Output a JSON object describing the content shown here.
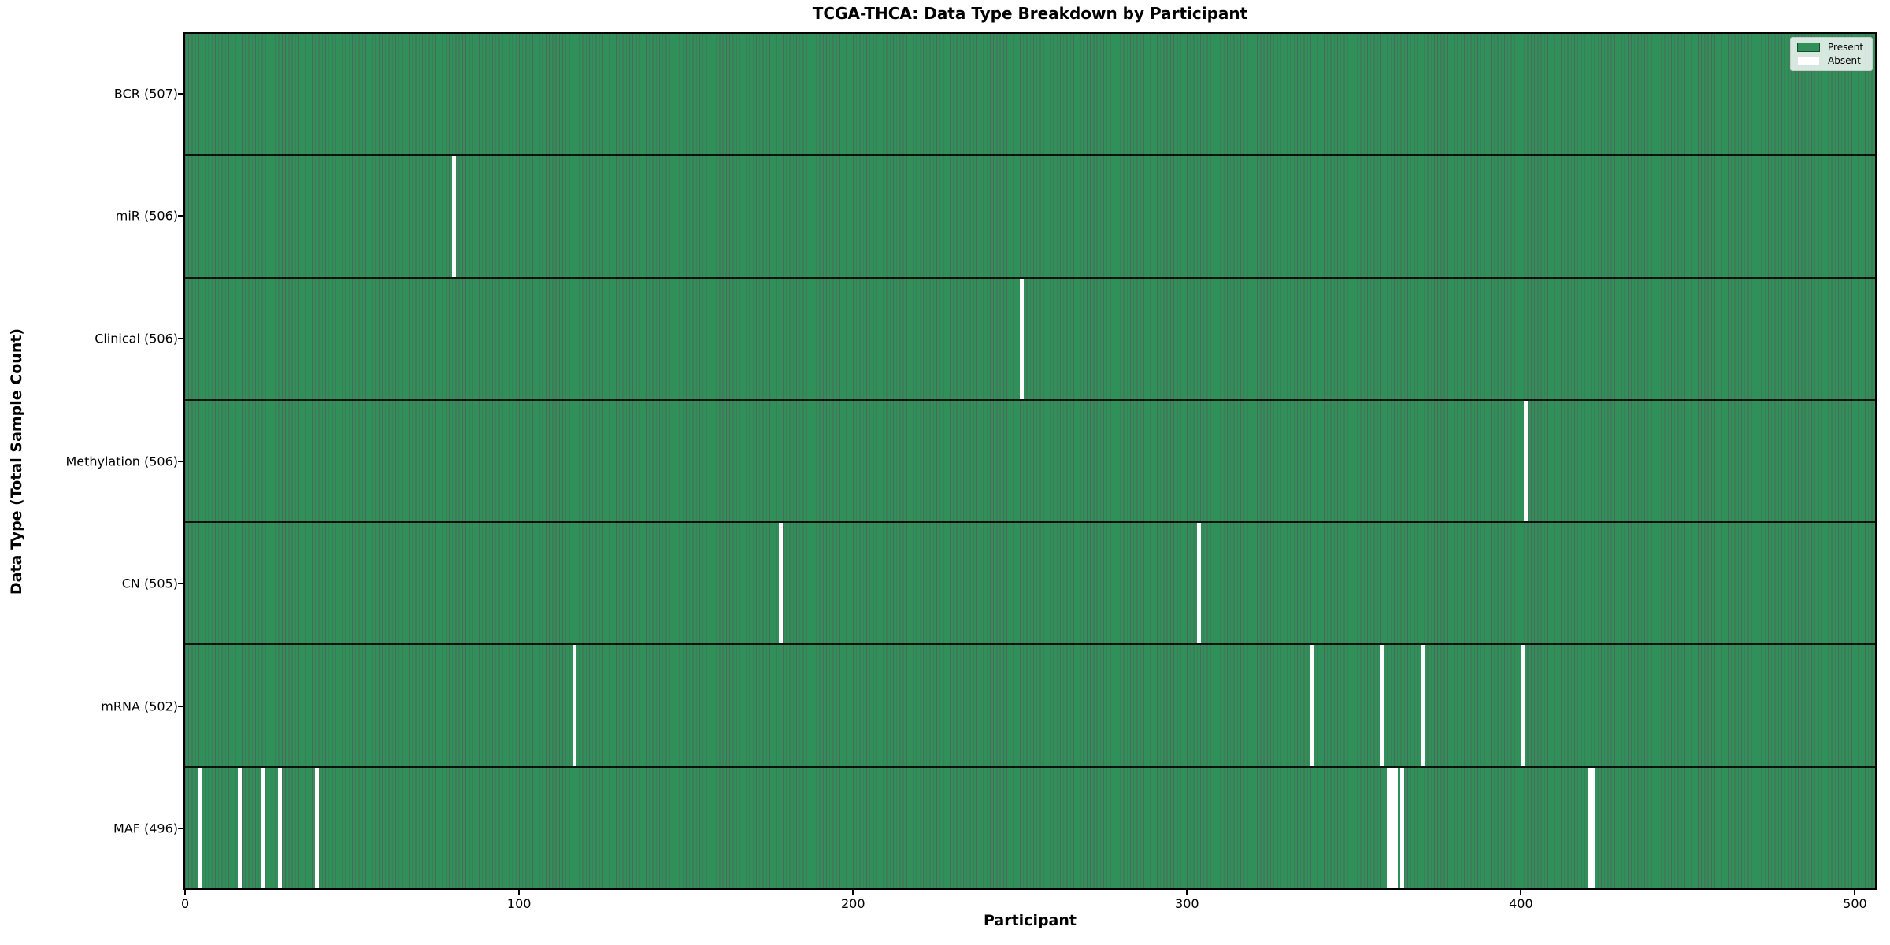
{
  "title": "TCGA-THCA: Data Type Breakdown by Participant",
  "colors": {
    "present": "#2f9059",
    "absent": "#ffffff",
    "bar_edge": "rgba(12,45,28,0.72)",
    "row_separator": "rgba(0,0,0,0.85)",
    "frame": "#000000",
    "legend_border": "#cccccc"
  },
  "chart_data": {
    "type": "heatmap",
    "title": "TCGA-THCA: Data Type Breakdown by Participant",
    "xlabel": "Participant",
    "ylabel": "Data Type (Total Sample Count)",
    "n_participants": 507,
    "xlim": [
      -0.5,
      506.5
    ],
    "x_ticks": [
      0,
      100,
      200,
      300,
      400,
      500
    ],
    "grid": false,
    "legend_position": "upper right",
    "legend": [
      {
        "label": "Present",
        "color": "#2f9059"
      },
      {
        "label": "Absent",
        "color": "#ffffff"
      }
    ],
    "rows": [
      {
        "label": "BCR (507)",
        "total": 507,
        "absent_indices": []
      },
      {
        "label": "miR (506)",
        "total": 506,
        "absent_indices": [
          80
        ]
      },
      {
        "label": "Clinical (506)",
        "total": 506,
        "absent_indices": [
          250
        ]
      },
      {
        "label": "Methylation (506)",
        "total": 506,
        "absent_indices": [
          401
        ]
      },
      {
        "label": "CN (505)",
        "total": 505,
        "absent_indices": [
          178,
          303
        ]
      },
      {
        "label": "mRNA (502)",
        "total": 502,
        "absent_indices": [
          116,
          337,
          358,
          370,
          400
        ]
      },
      {
        "label": "MAF (496)",
        "total": 496,
        "absent_indices": [
          4,
          16,
          23,
          28,
          39,
          360,
          361,
          362,
          364,
          420,
          421
        ]
      }
    ]
  }
}
